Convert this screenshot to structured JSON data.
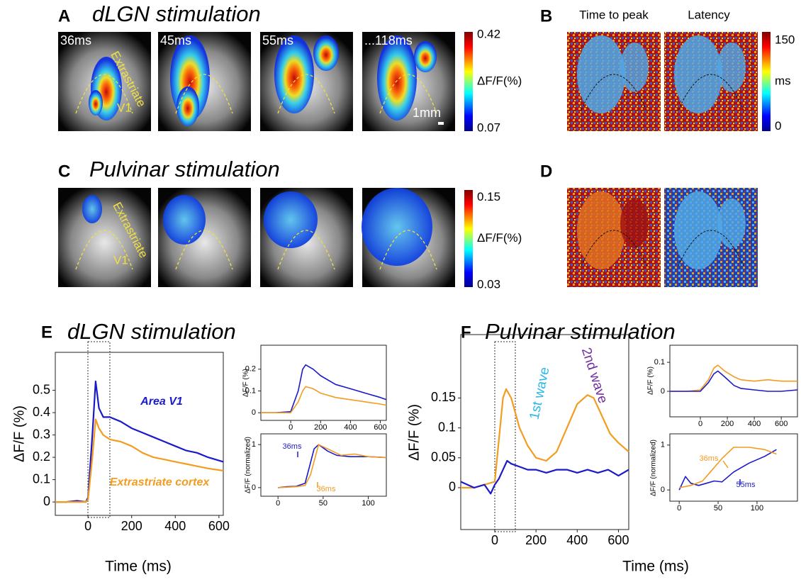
{
  "panels": {
    "A": {
      "letter": "A",
      "title": "dLGN stimulation",
      "frames": [
        "36ms",
        "45ms",
        "55ms",
        "...118ms"
      ],
      "overlay_labels": [
        "Extrastriate",
        "V1"
      ],
      "scale_bar": "1mm",
      "colorbar": {
        "lim": [
          0.06,
          0.43
        ],
        "ticks": [
          0.07,
          0.42
        ],
        "label": "ΔF/F(%)"
      }
    },
    "B": {
      "letter": "B",
      "maps": [
        "Time to peak",
        "Latency"
      ],
      "colorbar": {
        "lim": [
          -8,
          165
        ],
        "ticks": [
          0,
          150
        ],
        "label": "ms"
      }
    },
    "C": {
      "letter": "C",
      "title": "Pulvinar stimulation",
      "overlay_labels": [
        "Extrastriate",
        "V1"
      ],
      "colorbar": {
        "lim": [
          0.027,
          0.16
        ],
        "ticks": [
          0.03,
          0.15
        ],
        "label": "ΔF/F(%)"
      }
    },
    "D": {
      "letter": "D"
    },
    "E": {
      "letter": "E",
      "title": "dLGN stimulation"
    },
    "F": {
      "letter": "F",
      "title": "Pulvinar stimulation"
    }
  },
  "chart_data": [
    {
      "type": "line",
      "ylabel": "ΔF/F (%)",
      "xlabel": "Time (ms)",
      "xlim": [
        -150,
        620
      ],
      "ylim": [
        -0.06,
        0.67
      ],
      "xticks": [
        0,
        200,
        400,
        600
      ],
      "yticks": [
        0,
        0.1,
        0.2,
        0.3,
        0.4,
        0.5
      ],
      "series": [
        {
          "name": "Area V1",
          "color": "#1a1acb",
          "x": [
            -150,
            -100,
            -50,
            -10,
            0,
            20,
            35,
            50,
            70,
            100,
            150,
            200,
            250,
            300,
            350,
            400,
            450,
            500,
            550,
            620
          ],
          "values": [
            0,
            0,
            0.005,
            0,
            0.02,
            0.3,
            0.54,
            0.42,
            0.38,
            0.38,
            0.36,
            0.33,
            0.31,
            0.29,
            0.27,
            0.25,
            0.23,
            0.22,
            0.2,
            0.18
          ]
        },
        {
          "name": "Extrastriate cortex",
          "color": "#f39c1f",
          "x": [
            -150,
            -100,
            -50,
            -10,
            0,
            20,
            35,
            50,
            70,
            100,
            150,
            200,
            250,
            300,
            350,
            400,
            450,
            500,
            550,
            620
          ],
          "values": [
            0,
            0,
            0,
            0,
            0.01,
            0.2,
            0.37,
            0.33,
            0.3,
            0.28,
            0.27,
            0.25,
            0.22,
            0.2,
            0.19,
            0.18,
            0.17,
            0.16,
            0.15,
            0.14
          ]
        }
      ]
    },
    {
      "type": "line",
      "ylabel": "ΔF/F (%)",
      "xlim": [
        -200,
        640
      ],
      "ylim": [
        -0.035,
        0.31
      ],
      "xticks": [
        0,
        200,
        400,
        600
      ],
      "yticks": [
        0,
        0.1,
        0.2
      ],
      "series": [
        {
          "color": "#1a1acb",
          "x": [
            -200,
            -100,
            0,
            50,
            80,
            100,
            150,
            200,
            300,
            400,
            500,
            600,
            640
          ],
          "values": [
            0,
            0,
            0.005,
            0.1,
            0.2,
            0.22,
            0.2,
            0.17,
            0.13,
            0.11,
            0.09,
            0.07,
            0.06
          ]
        },
        {
          "color": "#f39c1f",
          "x": [
            -200,
            -100,
            0,
            50,
            80,
            100,
            150,
            200,
            300,
            400,
            500,
            600,
            640
          ],
          "values": [
            0,
            0,
            0,
            0.05,
            0.1,
            0.12,
            0.11,
            0.09,
            0.07,
            0.06,
            0.05,
            0.04,
            0.035
          ]
        }
      ]
    },
    {
      "type": "line",
      "ylabel": "ΔF/F (normalized)",
      "xlim": [
        -19,
        120
      ],
      "ylim": [
        -0.2,
        1.25
      ],
      "xticks": [
        0,
        50,
        100
      ],
      "yticks": [
        0,
        1
      ],
      "series": [
        {
          "color": "#1a1acb",
          "x": [
            0,
            10,
            20,
            30,
            35,
            40,
            45,
            55,
            65,
            80,
            100,
            120
          ],
          "values": [
            0,
            0.02,
            0.03,
            0.1,
            0.5,
            0.9,
            1,
            0.85,
            0.75,
            0.72,
            0.72,
            0.7
          ]
        },
        {
          "color": "#f39c1f",
          "x": [
            0,
            20,
            30,
            36,
            45,
            55,
            70,
            85,
            100,
            120
          ],
          "values": [
            0,
            0.02,
            0.05,
            0.3,
            1,
            0.9,
            0.75,
            0.78,
            0.72,
            0.7
          ]
        }
      ],
      "annotations": [
        {
          "text": "36ms",
          "color": "#1a1acb"
        },
        {
          "text": "36ms",
          "color": "#f39c1f"
        }
      ]
    },
    {
      "type": "line",
      "ylabel": "ΔF/F (%)",
      "xlabel": "Time (ms)",
      "xlim": [
        -165,
        650
      ],
      "ylim": [
        -0.07,
        0.256
      ],
      "xticks": [
        0,
        200,
        400,
        600
      ],
      "yticks": [
        0,
        0.05,
        0.1,
        0.15
      ],
      "series": [
        {
          "color": "#f39c1f",
          "x": [
            -165,
            -100,
            -50,
            0,
            20,
            40,
            55,
            80,
            120,
            160,
            200,
            250,
            300,
            350,
            400,
            450,
            480,
            520,
            560,
            600,
            650
          ],
          "values": [
            0,
            0,
            0.005,
            0.01,
            0.08,
            0.15,
            0.165,
            0.15,
            0.1,
            0.07,
            0.05,
            0.045,
            0.06,
            0.1,
            0.14,
            0.155,
            0.15,
            0.12,
            0.09,
            0.075,
            0.06
          ]
        },
        {
          "color": "#1a1acb",
          "x": [
            -165,
            -100,
            -50,
            -20,
            0,
            20,
            40,
            60,
            80,
            120,
            160,
            200,
            250,
            300,
            350,
            400,
            450,
            500,
            550,
            600,
            650
          ],
          "values": [
            0.01,
            0,
            0.005,
            -0.01,
            0.005,
            0.015,
            0.03,
            0.045,
            0.04,
            0.035,
            0.03,
            0.03,
            0.025,
            0.03,
            0.03,
            0.025,
            0.03,
            0.025,
            0.03,
            0.02,
            0.03
          ]
        }
      ],
      "annotations": [
        {
          "text": "1st wave",
          "color": "#2ab8e8"
        },
        {
          "text": "2nd wave",
          "color": "#7030a0"
        }
      ]
    },
    {
      "type": "line",
      "ylabel": "ΔF/F (%)",
      "xlim": [
        -226,
        720
      ],
      "ylim": [
        -0.088,
        0.159
      ],
      "xticks": [
        0,
        200,
        400,
        600
      ],
      "yticks": [
        0,
        0.1
      ],
      "series": [
        {
          "color": "#f39c1f",
          "x": [
            -226,
            -100,
            0,
            60,
            100,
            130,
            180,
            250,
            300,
            400,
            500,
            600,
            720
          ],
          "values": [
            0,
            0,
            0.005,
            0.04,
            0.08,
            0.09,
            0.07,
            0.05,
            0.04,
            0.035,
            0.04,
            0.035,
            0.035
          ]
        },
        {
          "color": "#1a1acb",
          "x": [
            -226,
            -100,
            0,
            60,
            100,
            130,
            180,
            250,
            300,
            400,
            500,
            600,
            720
          ],
          "values": [
            0,
            0,
            0,
            0.03,
            0.06,
            0.07,
            0.05,
            0.02,
            0.01,
            0.005,
            0,
            0,
            0.005
          ]
        }
      ]
    },
    {
      "type": "line",
      "ylabel": "ΔF/F (normalized)",
      "xlim": [
        -12,
        152
      ],
      "ylim": [
        -0.25,
        1.25
      ],
      "xticks": [
        0,
        50,
        100
      ],
      "yticks": [
        0,
        1
      ],
      "series": [
        {
          "color": "#1a1acb",
          "x": [
            0,
            8,
            15,
            25,
            35,
            45,
            55,
            70,
            90,
            110,
            125
          ],
          "values": [
            0,
            0.3,
            0.15,
            0.1,
            0.15,
            0.2,
            0.18,
            0.4,
            0.6,
            0.75,
            0.9
          ]
        },
        {
          "color": "#f39c1f",
          "x": [
            0,
            15,
            30,
            40,
            55,
            70,
            90,
            110,
            125
          ],
          "values": [
            0.05,
            0.1,
            0.2,
            0.4,
            0.7,
            0.95,
            0.95,
            0.9,
            0.8
          ]
        }
      ],
      "annotations": [
        {
          "text": "36ms",
          "color": "#f39c1f"
        },
        {
          "text": "55ms",
          "color": "#1a1acb"
        }
      ]
    }
  ]
}
